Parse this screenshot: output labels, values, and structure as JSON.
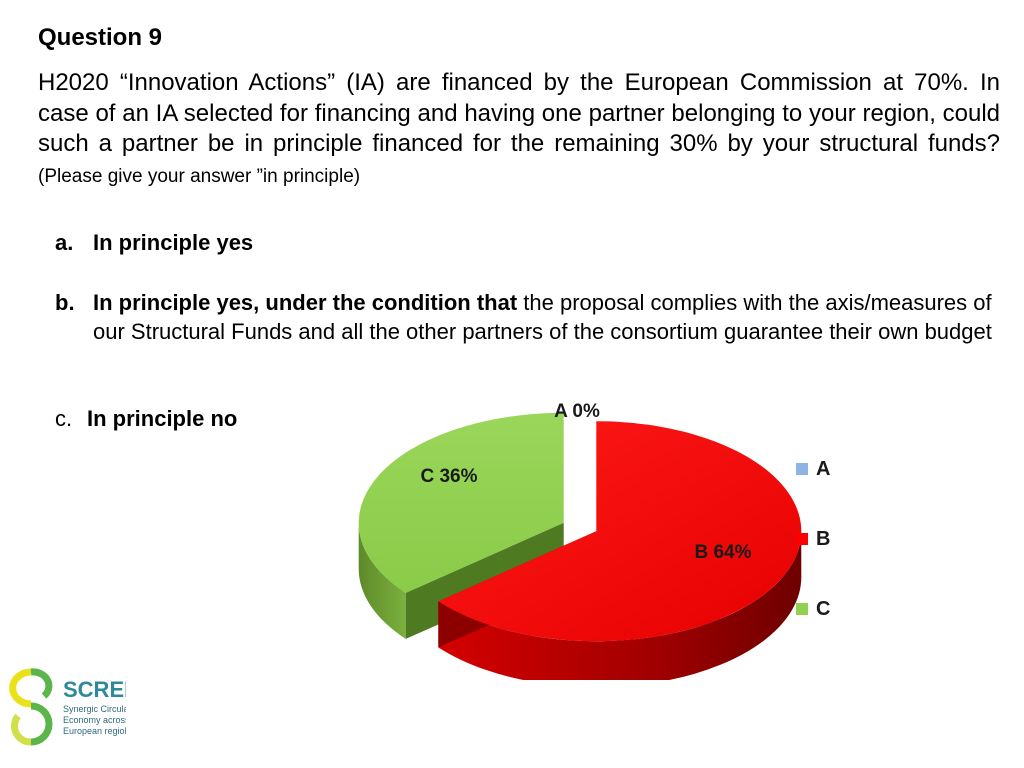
{
  "slide": {
    "title": "Question 9",
    "question_main": "H2020 “Innovation Actions” (IA) are financed by the European Commission at 70%. In case of an IA selected for financing and having one partner belonging to your region, could such a partner be in principle financed for the remaining 30% by your structural funds?",
    "question_note": "(Please give your answer ”in principle)"
  },
  "options": {
    "a": {
      "letter": "a.",
      "text": "In principle yes"
    },
    "b": {
      "letter": "b.",
      "bold": "In principle yes, under the condition that",
      "rest": "the proposal complies with the axis/measures of our Structural Funds and all the other partners of the consortium guarantee their own budget"
    },
    "c": {
      "letter": "c.",
      "text": "In principle no"
    }
  },
  "chart_data": {
    "type": "pie",
    "categories": [
      "A",
      "B",
      "C"
    ],
    "values": [
      0,
      64,
      36
    ],
    "data_labels": [
      "A 0%",
      "B 64%",
      "C 36%"
    ],
    "colors": [
      "#8eb4e3",
      "#ff0000",
      "#92d050"
    ],
    "legend": [
      "A",
      "B",
      "C"
    ],
    "legend_position": "right",
    "style": "3d-exploded"
  },
  "logo": {
    "name": "SCREEN",
    "tagline_1": "Synergic CirculaR",
    "tagline_2": "Economy across",
    "tagline_3": "European regioNs"
  }
}
